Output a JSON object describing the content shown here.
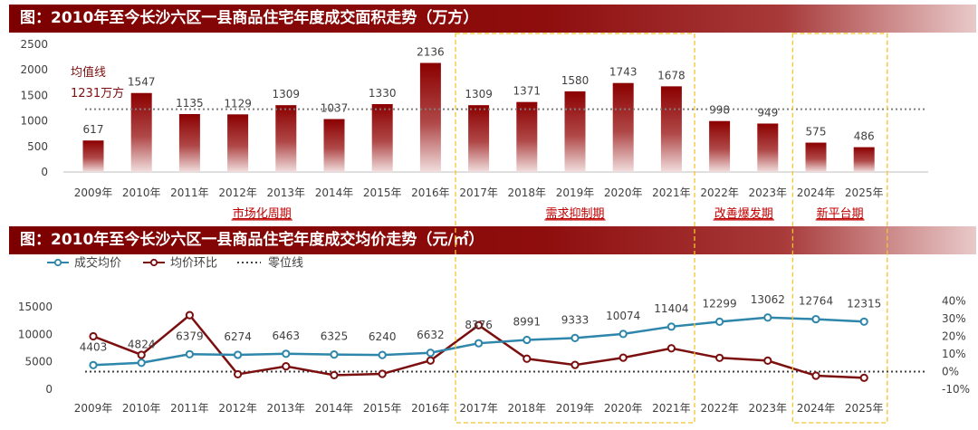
{
  "chart_data": [
    {
      "type": "bar",
      "title": "图：2010年至今长沙六区一县商品住宅年度成交面积走势（万方）",
      "categories": [
        "2009年",
        "2010年",
        "2011年",
        "2012年",
        "2013年",
        "2014年",
        "2015年",
        "2016年",
        "2017年",
        "2018年",
        "2019年",
        "2020年",
        "2021年",
        "2022年",
        "2023年",
        "2024年",
        "2025年"
      ],
      "values": [
        617,
        1547,
        1135,
        1129,
        1309,
        1037,
        1330,
        2136,
        1309,
        1371,
        1580,
        1743,
        1678,
        998,
        949,
        575,
        486
      ],
      "ylim": [
        0,
        2500
      ],
      "yticks": [
        0,
        500,
        1000,
        1500,
        2000,
        2500
      ],
      "bar_color": "#8b0000",
      "average_line": {
        "value": 1231,
        "label_line1": "均值线",
        "label_line2": "1231万方",
        "color": "#7f7f7f"
      },
      "periods": [
        {
          "label": "市场化周期",
          "start": "2009年",
          "end": "2016年"
        },
        {
          "label": "需求抑制期",
          "start": "2017年",
          "end": "2021年"
        },
        {
          "label": "改善爆发期",
          "start": "2022年",
          "end": "2023年"
        },
        {
          "label": "新平台期",
          "start": "2024年",
          "end": "2025年"
        }
      ],
      "period_label_color": "#c00000"
    },
    {
      "type": "line",
      "title": "图：2010年至今长沙六区一县商品住宅年度成交均价走势（元/㎡）",
      "categories": [
        "2009年",
        "2010年",
        "2011年",
        "2012年",
        "2013年",
        "2014年",
        "2015年",
        "2016年",
        "2017年",
        "2018年",
        "2019年",
        "2020年",
        "2021年",
        "2022年",
        "2023年",
        "2024年",
        "2025年"
      ],
      "legend": [
        "成交均价",
        "均价环比",
        "零位线"
      ],
      "series": [
        {
          "name": "成交均价",
          "axis": "left",
          "color": "#2e86ab",
          "values": [
            4403,
            4824,
            6379,
            6274,
            6463,
            6325,
            6240,
            6632,
            8376,
            8991,
            9333,
            10074,
            11404,
            12299,
            13062,
            12764,
            12315
          ]
        },
        {
          "name": "均价环比",
          "axis": "right",
          "color": "#7b0f0f",
          "values": [
            20,
            9.5,
            32,
            -1.5,
            3,
            -2,
            -1.3,
            6.3,
            26.3,
            7.3,
            3.8,
            7.9,
            13.2,
            7.8,
            6.2,
            -2.3,
            -3.5
          ]
        }
      ],
      "zero_line": {
        "name": "零位线",
        "value": 0,
        "axis": "right"
      },
      "left_ylim": [
        0,
        15000
      ],
      "left_yticks": [
        0,
        5000,
        10000,
        15000
      ],
      "right_ylim": [
        -10,
        40
      ],
      "right_yticks": [
        -10,
        0,
        10,
        20,
        30,
        40
      ],
      "right_tick_labels": [
        "-10%",
        "0%",
        "10%",
        "20%",
        "30%",
        "40%"
      ]
    }
  ],
  "highlight_boxes": [
    {
      "start": "2017年",
      "end": "2021年",
      "color": "#f4c430"
    },
    {
      "start": "2024年",
      "end": "2025年",
      "color": "#f4c430"
    }
  ]
}
